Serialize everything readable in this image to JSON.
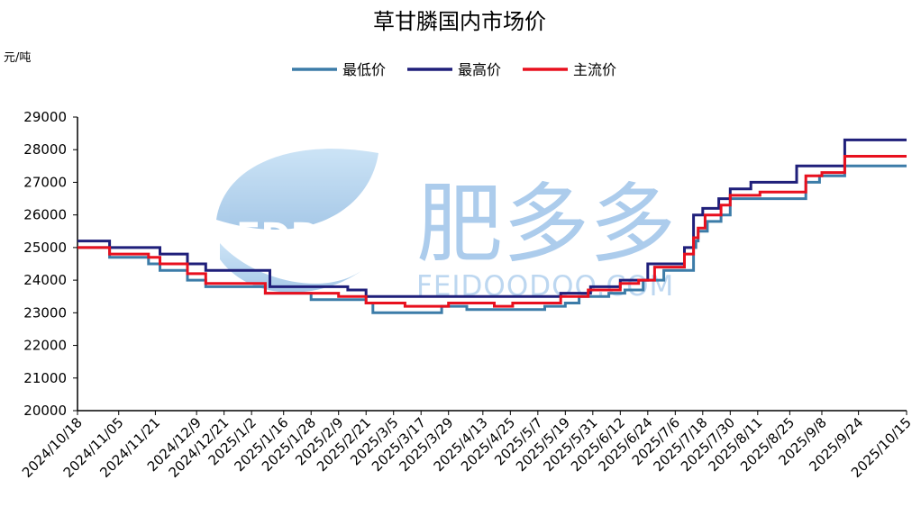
{
  "chart_data": {
    "type": "line",
    "title": "草甘膦国内市场价",
    "ylabel": "元/吨",
    "xlabel": "",
    "ylim": [
      20000,
      29000
    ],
    "yticks": [
      20000,
      21000,
      22000,
      23000,
      24000,
      25000,
      26000,
      27000,
      28000,
      29000
    ],
    "grid": false,
    "legend_position": "top",
    "x_tick_labels": [
      "2024/10/18",
      "2024/11/05",
      "2024/11/21",
      "2024/12/9",
      "2024/12/21",
      "2025/1/2",
      "2025/1/16",
      "2025/1/28",
      "2025/2/9",
      "2025/2/21",
      "2025/3/5",
      "2025/3/17",
      "2025/3/29",
      "2025/4/13",
      "2025/4/25",
      "2025/5/7",
      "2025/5/19",
      "2025/5/31",
      "2025/6/12",
      "2025/6/24",
      "2025/7/6",
      "2025/7/18",
      "2025/7/30",
      "2025/8/11",
      "2025/8/25",
      "2025/9/8",
      "2025/9/24",
      "2025/10/15"
    ],
    "x_range": [
      "2024/10/18",
      "2025/10/15"
    ],
    "series": [
      {
        "name": "最低价",
        "color": "#3C7CA8",
        "points": [
          [
            "2024/10/18",
            25000
          ],
          [
            "2024/11/1",
            24700
          ],
          [
            "2024/11/18",
            24500
          ],
          [
            "2024/11/23",
            24300
          ],
          [
            "2024/12/5",
            24000
          ],
          [
            "2024/12/13",
            23800
          ],
          [
            "2025/1/8",
            23600
          ],
          [
            "2025/1/28",
            23400
          ],
          [
            "2025/2/21",
            23300
          ],
          [
            "2025/2/24",
            23000
          ],
          [
            "2025/3/26",
            23200
          ],
          [
            "2025/4/6",
            23100
          ],
          [
            "2025/5/10",
            23200
          ],
          [
            "2025/5/19",
            23300
          ],
          [
            "2025/5/25",
            23500
          ],
          [
            "2025/6/7",
            23600
          ],
          [
            "2025/6/14",
            23700
          ],
          [
            "2025/6/22",
            24000
          ],
          [
            "2025/7/1",
            24300
          ],
          [
            "2025/7/14",
            25000
          ],
          [
            "2025/7/15",
            25200
          ],
          [
            "2025/7/16",
            25500
          ],
          [
            "2025/7/20",
            25800
          ],
          [
            "2025/7/26",
            26000
          ],
          [
            "2025/7/30",
            26500
          ],
          [
            "2025/9/1",
            27000
          ],
          [
            "2025/9/7",
            27200
          ],
          [
            "2025/9/18",
            27500
          ],
          [
            "2025/10/15",
            27500
          ]
        ]
      },
      {
        "name": "最高价",
        "color": "#1F1F7A",
        "points": [
          [
            "2024/10/18",
            25200
          ],
          [
            "2024/11/1",
            25000
          ],
          [
            "2024/11/23",
            24800
          ],
          [
            "2024/12/5",
            24500
          ],
          [
            "2024/12/13",
            24300
          ],
          [
            "2025/1/10",
            23800
          ],
          [
            "2025/2/13",
            23700
          ],
          [
            "2025/2/21",
            23500
          ],
          [
            "2025/5/17",
            23600
          ],
          [
            "2025/5/30",
            23800
          ],
          [
            "2025/6/12",
            24000
          ],
          [
            "2025/6/24",
            24500
          ],
          [
            "2025/7/10",
            25000
          ],
          [
            "2025/7/14",
            26000
          ],
          [
            "2025/7/18",
            26200
          ],
          [
            "2025/7/25",
            26500
          ],
          [
            "2025/7/30",
            26800
          ],
          [
            "2025/8/8",
            27000
          ],
          [
            "2025/8/28",
            27500
          ],
          [
            "2025/9/18",
            28300
          ],
          [
            "2025/10/15",
            28300
          ]
        ]
      },
      {
        "name": "主流价",
        "color": "#E8101E",
        "points": [
          [
            "2024/10/18",
            25000
          ],
          [
            "2024/11/1",
            24800
          ],
          [
            "2024/11/18",
            24700
          ],
          [
            "2024/11/23",
            24500
          ],
          [
            "2024/12/5",
            24200
          ],
          [
            "2024/12/13",
            23900
          ],
          [
            "2025/1/8",
            23600
          ],
          [
            "2025/2/9",
            23500
          ],
          [
            "2025/2/21",
            23300
          ],
          [
            "2025/3/10",
            23200
          ],
          [
            "2025/3/29",
            23300
          ],
          [
            "2025/4/18",
            23200
          ],
          [
            "2025/4/26",
            23300
          ],
          [
            "2025/5/17",
            23500
          ],
          [
            "2025/5/29",
            23700
          ],
          [
            "2025/6/12",
            23900
          ],
          [
            "2025/6/20",
            24000
          ],
          [
            "2025/6/27",
            24400
          ],
          [
            "2025/7/10",
            24800
          ],
          [
            "2025/7/14",
            25300
          ],
          [
            "2025/7/16",
            25600
          ],
          [
            "2025/7/19",
            26000
          ],
          [
            "2025/7/26",
            26300
          ],
          [
            "2025/7/30",
            26600
          ],
          [
            "2025/8/12",
            26700
          ],
          [
            "2025/9/1",
            27200
          ],
          [
            "2025/9/8",
            27300
          ],
          [
            "2025/9/18",
            27800
          ],
          [
            "2025/10/15",
            27800
          ]
        ]
      }
    ]
  },
  "watermark": {
    "logo_text": "FDD",
    "brand_text": "肥多多",
    "url_text": "FEIDOODOO.COM"
  }
}
